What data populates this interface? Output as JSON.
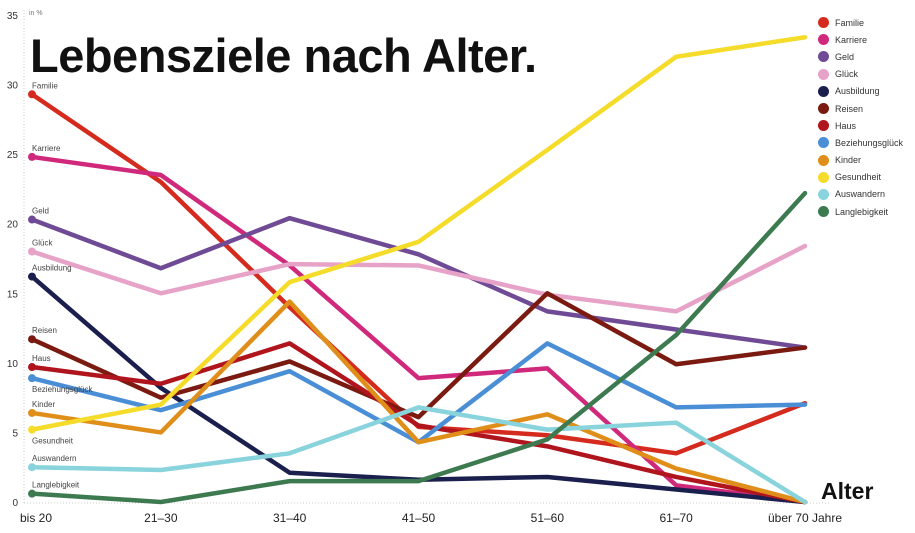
{
  "chart_data": {
    "type": "line",
    "title": "Lebensziele nach Alter.",
    "xlabel": "Alter",
    "ylabel": "in %",
    "ylim": [
      0,
      35
    ],
    "yticks": [
      "0",
      "5",
      "10",
      "15",
      "20",
      "25",
      "30",
      "35"
    ],
    "categories": [
      "bis 20",
      "21–30",
      "31–40",
      "41–50",
      "51–60",
      "61–70",
      "über 70 Jahre"
    ],
    "grid": false,
    "legend_position": "right",
    "series": [
      {
        "name": "Familie",
        "color": "#d52b1e",
        "values": [
          29.3,
          23.0,
          14.0,
          5.4,
          4.8,
          3.5,
          7.1
        ]
      },
      {
        "name": "Karriere",
        "color": "#d0297c",
        "values": [
          24.8,
          23.5,
          17.0,
          8.9,
          9.6,
          1.2,
          0
        ]
      },
      {
        "name": "Geld",
        "color": "#6f4b95",
        "values": [
          20.3,
          16.8,
          20.4,
          17.8,
          13.7,
          12.4,
          11.1
        ]
      },
      {
        "name": "Glück",
        "color": "#e7a2c8",
        "values": [
          18.0,
          15.0,
          17.1,
          17.0,
          14.9,
          13.7,
          18.4
        ]
      },
      {
        "name": "Ausbildung",
        "color": "#1a1f4e",
        "values": [
          16.2,
          8.2,
          2.1,
          1.6,
          1.8,
          0.9,
          0
        ]
      },
      {
        "name": "Reisen",
        "color": "#7a1a10",
        "values": [
          11.7,
          7.5,
          10.1,
          6.1,
          15.0,
          9.9,
          11.1
        ]
      },
      {
        "name": "Haus",
        "color": "#b0141c",
        "values": [
          9.7,
          8.5,
          11.4,
          5.5,
          4.0,
          1.8,
          0
        ]
      },
      {
        "name": "Beziehungsglück",
        "color": "#4a8fd6",
        "values": [
          8.9,
          6.6,
          9.4,
          4.3,
          11.4,
          6.8,
          7.0
        ]
      },
      {
        "name": "Kinder",
        "color": "#e08e1a",
        "values": [
          6.4,
          5.0,
          14.4,
          4.3,
          6.3,
          2.4,
          0
        ]
      },
      {
        "name": "Gesundheit",
        "color": "#f5dc2a",
        "values": [
          5.2,
          7.0,
          15.8,
          18.7,
          25.3,
          32.0,
          33.4
        ]
      },
      {
        "name": "Auswandern",
        "color": "#88d3dc",
        "values": [
          2.5,
          2.3,
          3.5,
          6.8,
          5.2,
          5.7,
          0
        ]
      },
      {
        "name": "Langlebigkeit",
        "color": "#3e7a50",
        "values": [
          0.6,
          0,
          1.5,
          1.5,
          4.5,
          12.0,
          22.2
        ]
      }
    ]
  }
}
